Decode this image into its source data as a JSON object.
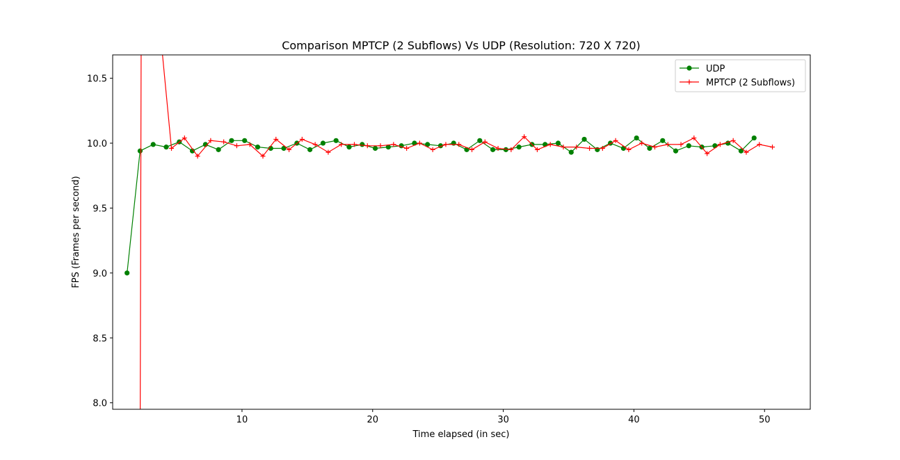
{
  "chart_data": {
    "type": "line",
    "title": "Comparison MPTCP (2 Subflows) Vs UDP (Resolution: 720 X 720)",
    "xlabel": "Time elapsed (in sec)",
    "ylabel": "FPS (Frames per second)",
    "xlim": [
      0.1,
      53.5
    ],
    "ylim": [
      7.95,
      10.68
    ],
    "xticks": [
      10,
      20,
      30,
      40,
      50
    ],
    "yticks": [
      8.0,
      8.5,
      9.0,
      9.5,
      10.0,
      10.5
    ],
    "xtick_labels": [
      "10",
      "20",
      "30",
      "40",
      "50"
    ],
    "ytick_labels": [
      "8.0",
      "8.5",
      "9.0",
      "9.5",
      "10.0",
      "10.5"
    ],
    "grid": false,
    "legend_position": "upper right",
    "series": [
      {
        "name": "UDP",
        "color": "#008000",
        "marker": "circle",
        "x": [
          1.2,
          2.2,
          3.2,
          4.2,
          5.2,
          6.2,
          7.2,
          8.2,
          9.2,
          10.2,
          11.2,
          12.2,
          13.2,
          14.2,
          15.2,
          16.2,
          17.2,
          18.2,
          19.2,
          20.2,
          21.2,
          22.2,
          23.2,
          24.2,
          25.2,
          26.2,
          27.2,
          28.2,
          29.2,
          30.2,
          31.2,
          32.2,
          33.2,
          34.2,
          35.2,
          36.2,
          37.2,
          38.2,
          39.2,
          40.2,
          41.2,
          42.2,
          43.2,
          44.2,
          45.2,
          46.2,
          47.2,
          48.2,
          49.2
        ],
        "values": [
          9.0,
          9.94,
          9.99,
          9.97,
          10.01,
          9.94,
          9.99,
          9.95,
          10.02,
          10.02,
          9.97,
          9.96,
          9.96,
          10.0,
          9.95,
          10.0,
          10.02,
          9.97,
          9.99,
          9.96,
          9.97,
          9.98,
          10.0,
          9.99,
          9.98,
          10.0,
          9.95,
          10.02,
          9.95,
          9.95,
          9.97,
          9.99,
          9.99,
          10.0,
          9.93,
          10.03,
          9.95,
          10.0,
          9.96,
          10.04,
          9.96,
          10.02,
          9.94,
          9.98,
          9.97,
          9.98,
          10.0,
          9.94,
          10.04
        ]
      },
      {
        "name": "MPTCP (2 Subflows)",
        "color": "#ff0000",
        "marker": "plus",
        "x": [
          2.2,
          2.3,
          3.8,
          4.6,
          5.6,
          6.6,
          7.6,
          8.6,
          9.6,
          10.6,
          11.6,
          12.6,
          13.6,
          14.6,
          15.6,
          16.6,
          17.6,
          18.6,
          19.6,
          20.6,
          21.6,
          22.6,
          23.6,
          24.6,
          25.6,
          26.6,
          27.6,
          28.6,
          29.6,
          30.6,
          31.6,
          32.6,
          33.6,
          34.6,
          35.6,
          36.6,
          37.6,
          38.6,
          39.6,
          40.6,
          41.6,
          42.6,
          43.6,
          44.6,
          45.6,
          46.6,
          47.6,
          48.6,
          49.6,
          50.6
        ],
        "values": [
          7.5,
          11.5,
          10.8,
          9.96,
          10.04,
          9.9,
          10.02,
          10.01,
          9.98,
          9.99,
          9.9,
          10.03,
          9.95,
          10.03,
          9.99,
          9.93,
          9.99,
          9.99,
          9.98,
          9.98,
          9.99,
          9.96,
          10.0,
          9.95,
          9.99,
          9.99,
          9.95,
          10.01,
          9.96,
          9.95,
          10.05,
          9.95,
          9.99,
          9.97,
          9.97,
          9.96,
          9.96,
          10.02,
          9.95,
          10.0,
          9.97,
          9.99,
          9.99,
          10.04,
          9.92,
          9.99,
          10.02,
          9.93,
          9.99,
          9.97
        ]
      }
    ]
  }
}
